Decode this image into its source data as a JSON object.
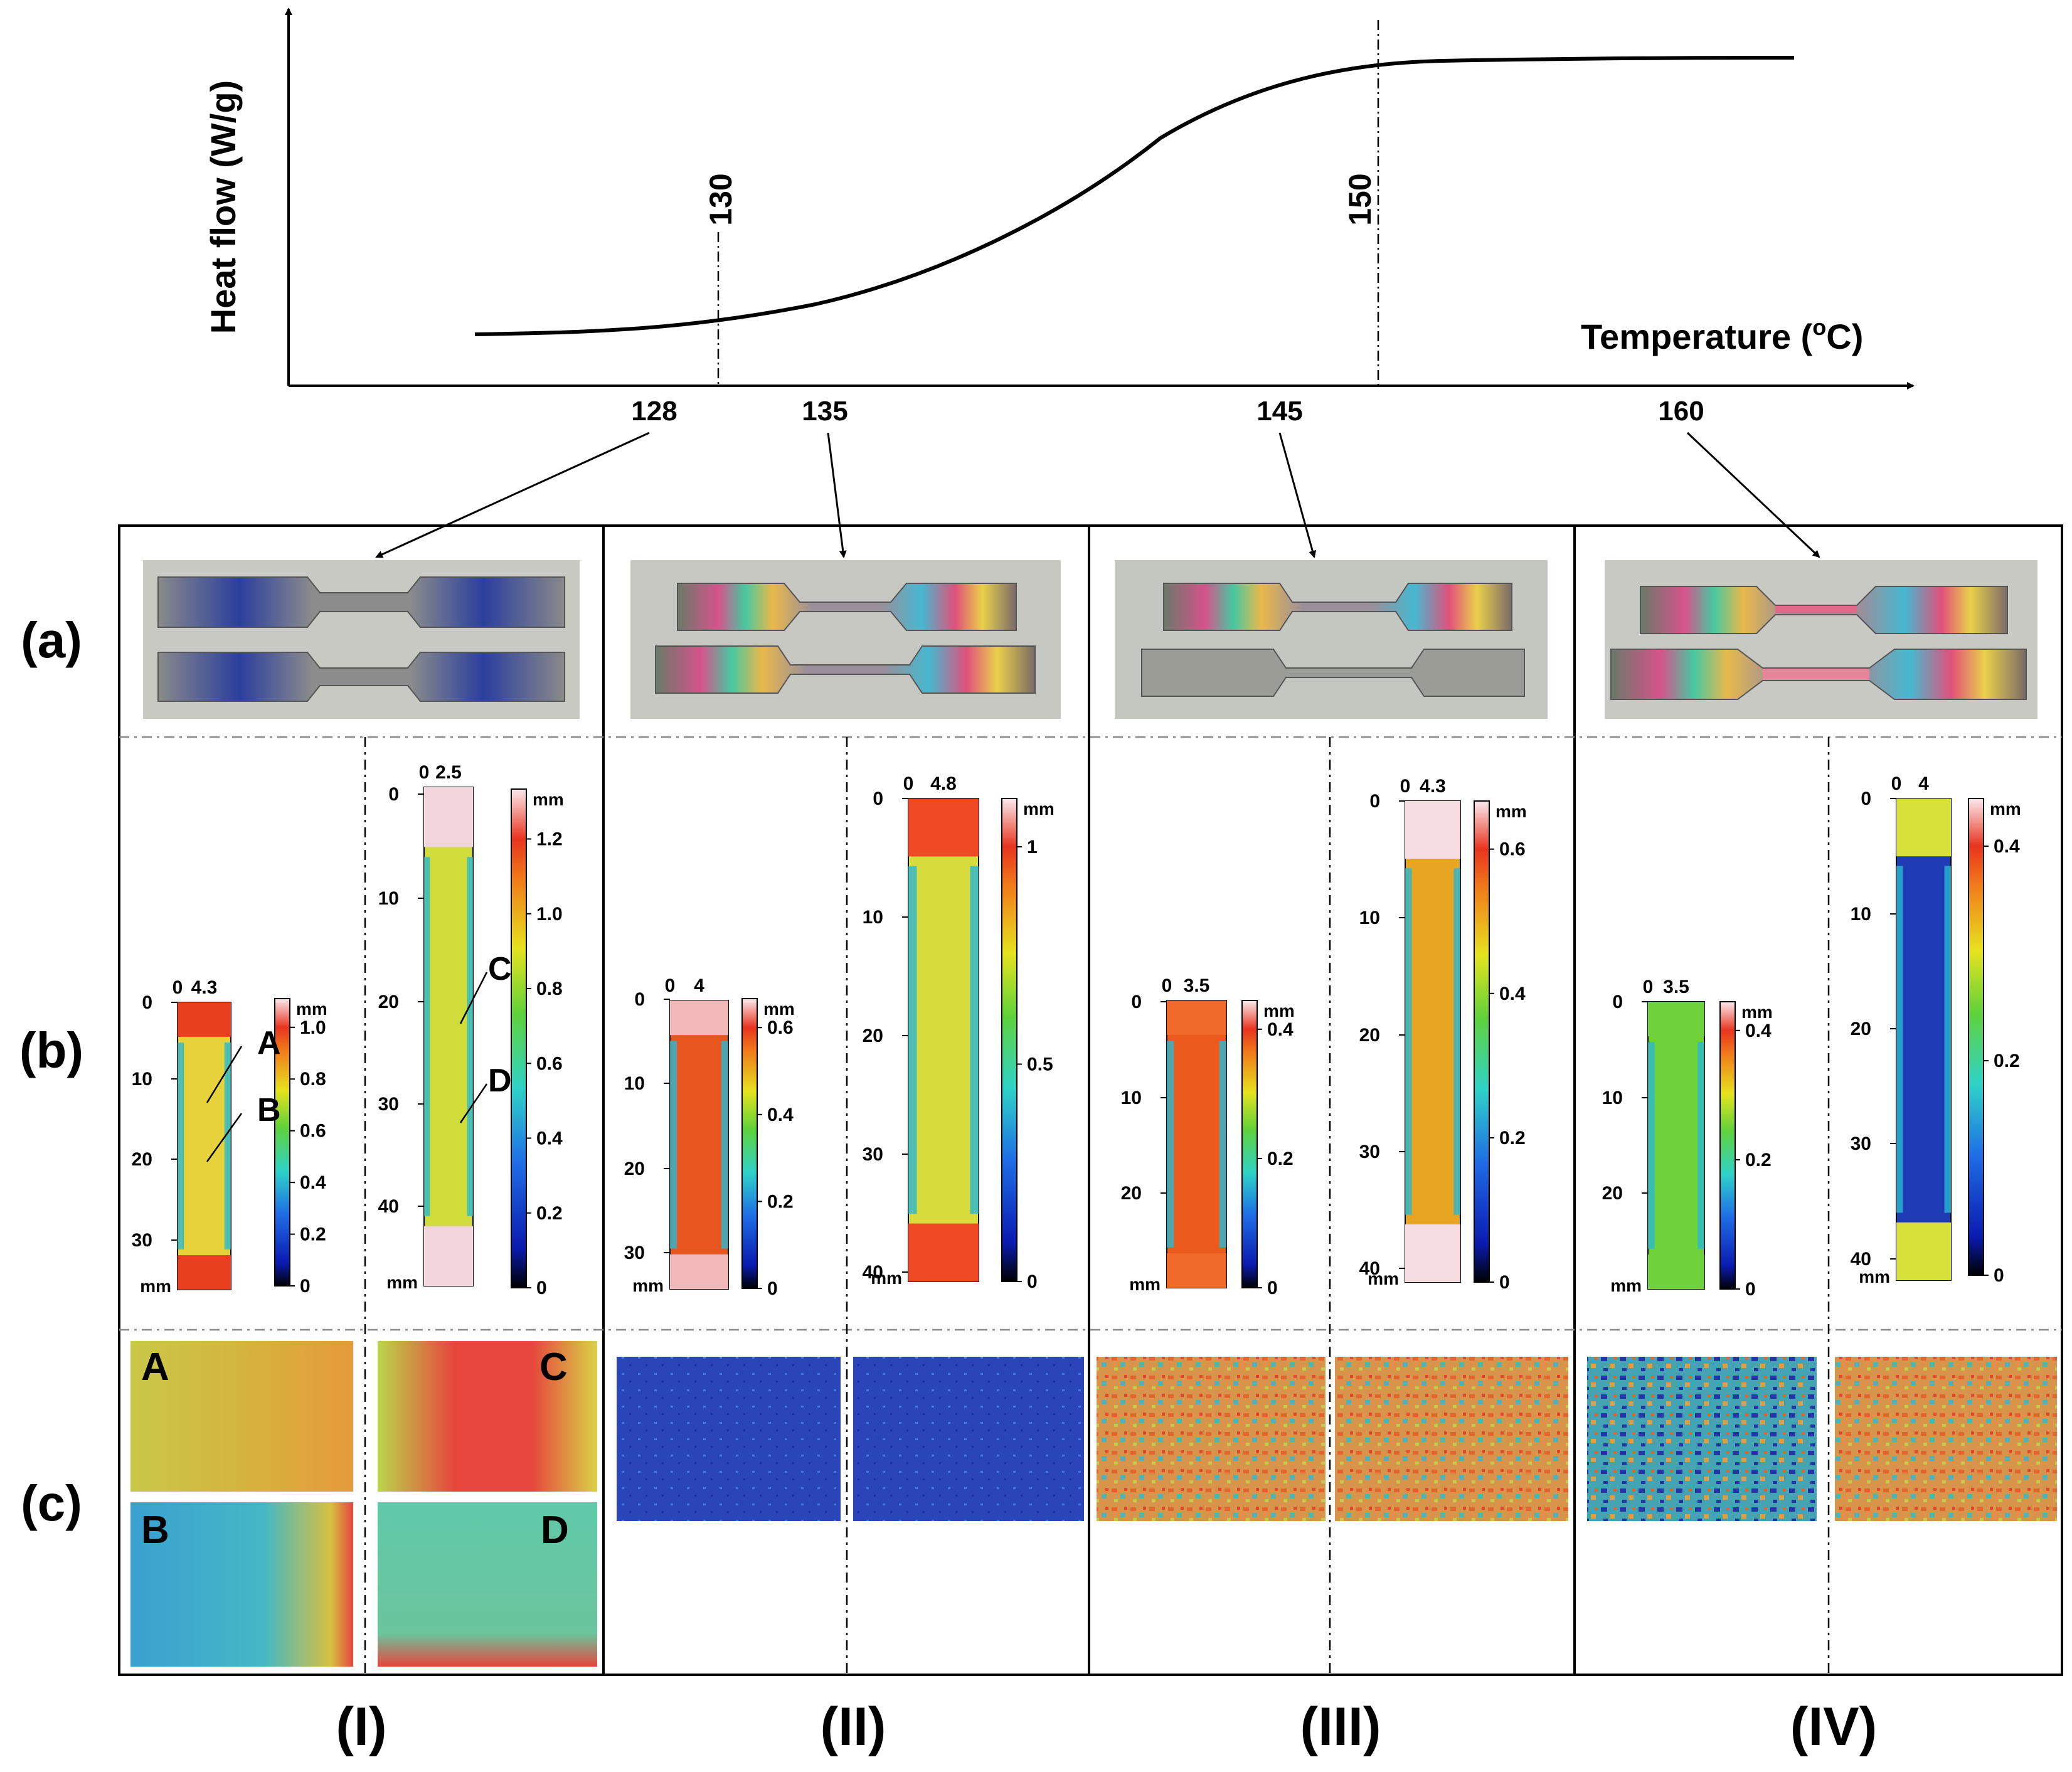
{
  "dsc_plot": {
    "ylabel": "Heat flow (W/g)",
    "xlabel": "Temperature (°C)",
    "xlabel_text": "Temperature (",
    "xlabel_deg": "o",
    "xlabel_unit": "C)",
    "marker_130": "130",
    "marker_150": "150",
    "ticks": [
      "128",
      "135",
      "145",
      "160"
    ]
  },
  "chart_data": {
    "type": "line",
    "title": "",
    "xlabel": "Temperature (oC)",
    "ylabel": "Heat flow (W/g)",
    "x": [
      120,
      124,
      128,
      132,
      135,
      138,
      140,
      142,
      145,
      148,
      150,
      153,
      156,
      160,
      164
    ],
    "y": [
      0.0,
      0.0,
      0.01,
      0.04,
      0.1,
      0.22,
      0.35,
      0.5,
      0.72,
      0.88,
      0.95,
      0.98,
      0.99,
      1.0,
      1.0
    ],
    "marked_x": [
      128,
      135,
      145,
      160
    ],
    "reference_lines": [
      130,
      150
    ]
  },
  "row_labels": [
    "(a)",
    "(b)",
    "(c)"
  ],
  "column_labels": [
    "(I)",
    "(II)",
    "(III)",
    "(IV)"
  ],
  "panel_b": {
    "unit": "mm",
    "plots": [
      {
        "id": "I-left",
        "x_ticks": [
          "0",
          "4.3"
        ],
        "y_ticks": [
          "0",
          "10",
          "20",
          "30"
        ],
        "cbar_ticks": [
          "1.0",
          "0.8",
          "0.6",
          "0.4",
          "0.2",
          "0"
        ],
        "labels": [
          "A",
          "B"
        ]
      },
      {
        "id": "I-right",
        "x_ticks": [
          "0",
          "2.5"
        ],
        "y_ticks": [
          "0",
          "10",
          "20",
          "30",
          "40"
        ],
        "cbar_ticks": [
          "1.2",
          "1.0",
          "0.8",
          "0.6",
          "0.4",
          "0.2",
          "0"
        ],
        "labels": [
          "C",
          "D"
        ]
      },
      {
        "id": "II-left",
        "x_ticks": [
          "0",
          "4"
        ],
        "y_ticks": [
          "0",
          "10",
          "20",
          "30"
        ],
        "cbar_ticks": [
          "0.6",
          "0.4",
          "0.2",
          "0"
        ]
      },
      {
        "id": "II-right",
        "x_ticks": [
          "0",
          "4.8"
        ],
        "y_ticks": [
          "0",
          "10",
          "20",
          "30",
          "40"
        ],
        "cbar_ticks": [
          "1",
          "0.5",
          "0"
        ]
      },
      {
        "id": "III-left",
        "x_ticks": [
          "0",
          "3.5"
        ],
        "y_ticks": [
          "0",
          "10",
          "20"
        ],
        "cbar_ticks": [
          "0.4",
          "0.2",
          "0"
        ]
      },
      {
        "id": "III-right",
        "x_ticks": [
          "0",
          "4.3"
        ],
        "y_ticks": [
          "0",
          "10",
          "20",
          "30",
          "40"
        ],
        "cbar_ticks": [
          "0.6",
          "0.4",
          "0.2",
          "0"
        ]
      },
      {
        "id": "IV-left",
        "x_ticks": [
          "0",
          "3.5"
        ],
        "y_ticks": [
          "0",
          "10",
          "20"
        ],
        "cbar_ticks": [
          "0.4",
          "0.2",
          "0"
        ]
      },
      {
        "id": "IV-right",
        "x_ticks": [
          "0",
          "4"
        ],
        "y_ticks": [
          "0",
          "10",
          "20",
          "30",
          "40"
        ],
        "cbar_ticks": [
          "0.4",
          "0.2",
          "0"
        ]
      }
    ]
  },
  "panel_c": {
    "labels": [
      "A",
      "C",
      "B",
      "D"
    ]
  },
  "colors": {
    "line": "#000000",
    "hot": "#e8411c",
    "mid": "#d8d81e",
    "cool": "#25c2c9",
    "cold": "#1e2fa8"
  }
}
